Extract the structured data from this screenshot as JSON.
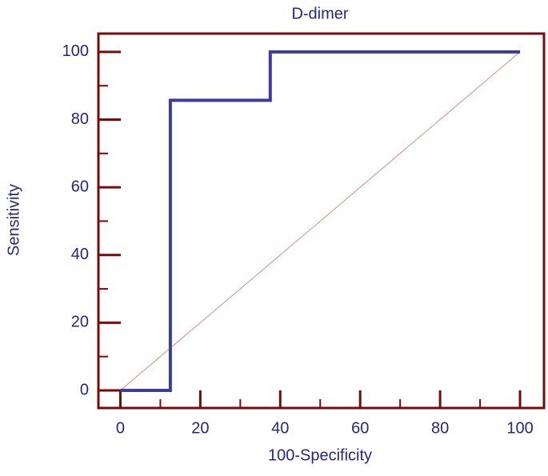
{
  "chart_data": {
    "type": "line",
    "title": "D-dimer",
    "xlabel": "100-Specificity",
    "ylabel": "Sensitivity",
    "series": [
      {
        "color": "#3c3c9c",
        "x": [
          0,
          12.5,
          12.5,
          37.5,
          37.5,
          100
        ],
        "values": [
          0,
          0,
          85.7,
          85.7,
          100,
          100
        ]
      },
      {
        "color": "#c89090",
        "x": [
          0,
          100
        ],
        "values": [
          0,
          100
        ]
      }
    ],
    "xlim": [
      -5.5,
      106
    ],
    "ylim": [
      -5.2,
      105.4
    ],
    "xticks": [
      0,
      20,
      40,
      60,
      80,
      100
    ],
    "yticks": [
      0,
      20,
      40,
      60,
      80,
      100
    ],
    "xminorticks": [
      10,
      30,
      50,
      70,
      90
    ],
    "yminorticks": [
      10,
      30,
      50,
      70,
      90
    ],
    "frame_color": "#7a0a0a",
    "text_color": "#262680"
  }
}
